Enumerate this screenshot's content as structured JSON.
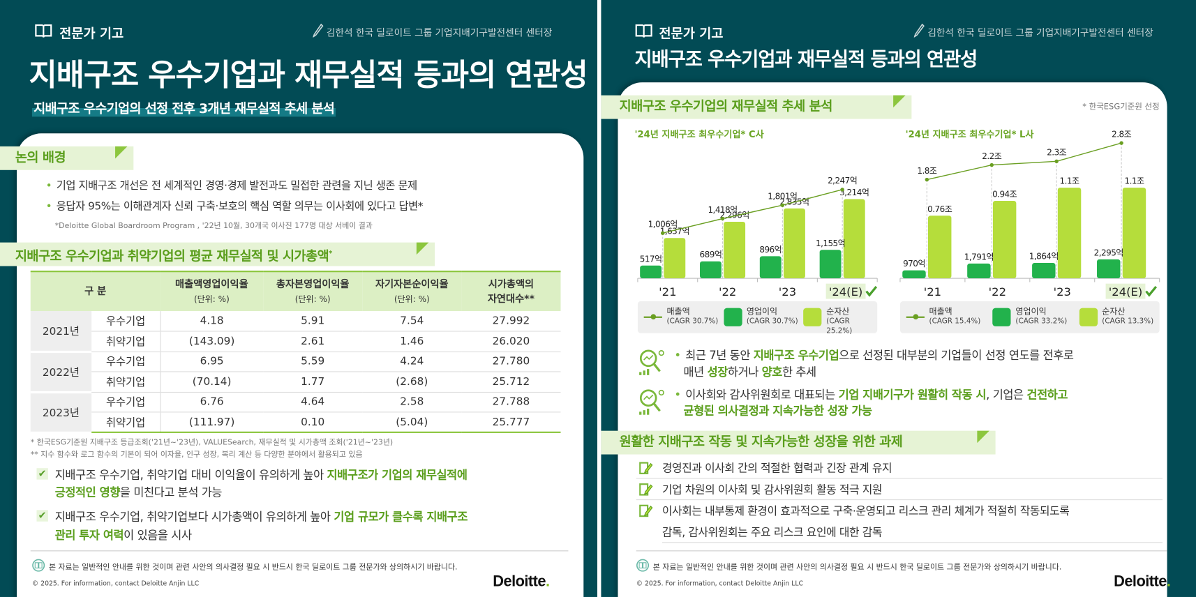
{
  "colors": {
    "bg": "#024b55",
    "accent": "#5a9e1c",
    "bar_operating": "#22b24c",
    "bar_net_assets": "#b5dd3b",
    "line_revenue": "#6a9f22"
  },
  "left": {
    "header_label": "전문가 기고",
    "author": "김한석 한국 딜로이트 그룹 기업지배기구발전센터 센터장",
    "title": "지배구조 우수기업과 재무실적 등과의 연관성",
    "subtitle": "지배구조 우수기업의 선정 전후 3개년 재무실적 추세 분석",
    "section1": {
      "title": "논의 배경",
      "bullets": [
        "기업 지배구조 개선은 전 세계적인 경영·경제 발전과도 밀접한 관련을 지닌 생존 문제",
        "응답자 95%는 이해관계자 신뢰 구축·보호의 핵심 역할 의무는 이사회에 있다고 답변*"
      ],
      "footnote": "*Deloitte Global Boardroom Program , '22년 10월, 30개국 이사진 177명 대상 서베이 결과"
    },
    "section2": {
      "title": "지배구조 우수기업과 취약기업의 평균 재무실적 및 시가총액",
      "title_mark": "*",
      "table": {
        "headers": [
          {
            "l1": "구 분",
            "l2": ""
          },
          {
            "l1": "매출액영업이익율",
            "l2": "(단위: %)"
          },
          {
            "l1": "총자본영업이익율",
            "l2": "(단위: %)"
          },
          {
            "l1": "자기자본순이익율",
            "l2": "(단위: %)"
          },
          {
            "l1": "시가총액의",
            "l2": "자연대수**"
          }
        ],
        "rows": [
          {
            "year": "2021년",
            "type": "우수기업",
            "v": [
              "4.18",
              "5.91",
              "7.54",
              "27.992"
            ]
          },
          {
            "year": "2021년",
            "type": "취약기업",
            "v": [
              "(143.09)",
              "2.61",
              "1.46",
              "26.020"
            ]
          },
          {
            "year": "2022년",
            "type": "우수기업",
            "v": [
              "6.95",
              "5.59",
              "4.24",
              "27.780"
            ]
          },
          {
            "year": "2022년",
            "type": "취약기업",
            "v": [
              "(70.14)",
              "1.77",
              "(2.68)",
              "25.712"
            ]
          },
          {
            "year": "2023년",
            "type": "우수기업",
            "v": [
              "6.76",
              "4.64",
              "2.58",
              "27.788"
            ]
          },
          {
            "year": "2023년",
            "type": "취약기업",
            "v": [
              "(111.97)",
              "0.10",
              "(5.04)",
              "25.777"
            ]
          }
        ]
      },
      "footnotes": [
        "* 한국ESG기준원 지배구조 등급조회('21년~'23년), VALUESearch, 재무실적 및 시가총액 조회('21년~'23년)",
        "** 지수 함수와 로그 함수의 기본이 되어 이자율, 인구 성장, 복리 계산 등 다양한 분야에서 활용되고 있음"
      ],
      "conclusions": [
        [
          [
            {
              "t": "지배구조 우수기업, 취약기업 대비 이익율이 유의하게 높아 ",
              "hl": false
            },
            {
              "t": "지배구조가 기업의 재무실적에",
              "hl": true
            }
          ],
          [
            {
              "t": "긍정적인 영향",
              "hl": true
            },
            {
              "t": "을 미친다고 분석 가능",
              "hl": false
            }
          ]
        ],
        [
          [
            {
              "t": "지배구조 우수기업, 취약기업보다 시가총액이 유의하게 높아 ",
              "hl": false
            },
            {
              "t": "기업 규모가 클수록 지배구조",
              "hl": true
            }
          ],
          [
            {
              "t": "관리 투자 여력",
              "hl": true
            },
            {
              "t": "이 있음을 시사",
              "hl": false
            }
          ]
        ]
      ]
    },
    "disclaimer": "본 자료는 일반적인 안내를 위한 것이며 관련 사안의 의사결정 필요 시 반드시 한국 딜로이트 그룹 전문가와 상의하시기 바랍니다.",
    "copyright": "© 2025. For information, contact Deloitte Anjin LLC",
    "logo": "Deloitte."
  },
  "right": {
    "header_label": "전문가 기고",
    "author": "김한석 한국 딜로이트 그룹 기업지배기구발전센터 센터장",
    "title": "지배구조 우수기업과 재무실적 등과의 연관성",
    "section1": {
      "title": "지배구조 우수기업의 재무실적 추세 분석",
      "note": "* 한국ESG기준원 선정"
    },
    "insights": [
      [
        [
          {
            "t": "최근 7년 동안 ",
            "hl": false
          },
          {
            "t": "지배구조 우수기업",
            "hl": true
          },
          {
            "t": "으로 선정된 대부분의 기업들이 선정 연도를 전후로",
            "hl": false
          }
        ],
        [
          {
            "t": "매년 ",
            "hl": false
          },
          {
            "t": "성장",
            "hl": true
          },
          {
            "t": "하거나 ",
            "hl": false
          },
          {
            "t": "양호",
            "hl": true
          },
          {
            "t": "한 추세",
            "hl": false
          }
        ]
      ],
      [
        [
          {
            "t": "이사회와 감사위원회로 대표되는 ",
            "hl": false
          },
          {
            "t": "기업 지배기구가 원활히 작동 시",
            "hl": true
          },
          {
            "t": ", 기업은 ",
            "hl": false
          },
          {
            "t": "건전하고",
            "hl": true
          }
        ],
        [
          {
            "t": "균형된 의사결정과 지속가능한 성장 가능",
            "hl": true
          }
        ]
      ]
    ],
    "section2": {
      "title": "원활한 지배구조 작동 및 지속가능한 성장을 위한 과제",
      "items": [
        "경영진과 이사회 간의 적절한 협력과 긴장 관계 유지",
        "기업 차원의 이사회 및 감사위원회 활동 적극 지원",
        "이사회는 내부통제 환경이 효과적으로 구축·운영되고 리스크 관리 체계가 적절히 작동되도록",
        "감독, 감사위원회는 주요 리스크 요인에 대한 감독"
      ]
    },
    "disclaimer": "본 자료는 일반적인 안내를 위한 것이며 관련 사안의 의사결정 필요 시 반드시 한국 딜로이트 그룹 전문가와 상의하시기 바랍니다.",
    "copyright": "© 2025. For information, contact Deloitte Anjin LLC",
    "logo": "Deloitte."
  },
  "chart_data": [
    {
      "type": "bar",
      "title": "'24년 지배구조 최우수기업* C사",
      "categories": [
        "'21",
        "'22",
        "'23",
        "'24(E)"
      ],
      "highlight_category": "'24(E)",
      "unit": "억",
      "series": [
        {
          "name": "매출액",
          "cagr": "(CAGR 30.7%)",
          "kind": "line",
          "values": [
            1006,
            1418,
            1801,
            2247
          ],
          "labels": [
            "1,006억",
            "1,418억",
            "1,801억",
            "2,247억"
          ]
        },
        {
          "name": "영업이익",
          "cagr": "(CAGR 30.7%)",
          "kind": "bar",
          "values": [
            517,
            689,
            896,
            1155
          ],
          "labels": [
            "517억",
            "689억",
            "896억",
            "1,155억"
          ]
        },
        {
          "name": "순자산",
          "cagr": "(CAGR 25.2%)",
          "kind": "bar",
          "values": [
            1637,
            2296,
            2835,
            3214
          ],
          "labels": [
            "1,637억",
            "2,296억",
            "2,835억",
            "3,214억"
          ]
        }
      ]
    },
    {
      "type": "bar",
      "title": "'24년 지배구조 최우수기업* L사",
      "categories": [
        "'21",
        "'22",
        "'23",
        "'24(E)"
      ],
      "highlight_category": "'24(E)",
      "unit": "억",
      "series": [
        {
          "name": "매출액",
          "cagr": "(CAGR 15.4%)",
          "kind": "line",
          "values": [
            18000,
            22000,
            23000,
            28000
          ],
          "labels": [
            "1.8조",
            "2.2조",
            "2.3조",
            "2.8조"
          ]
        },
        {
          "name": "영업이익",
          "cagr": "(CAGR 33.2%)",
          "kind": "bar",
          "values": [
            970,
            1791,
            1864,
            2295
          ],
          "labels": [
            "970억",
            "1,791억",
            "1,864억",
            "2,295억"
          ]
        },
        {
          "name": "순자산",
          "cagr": "(CAGR 13.3%)",
          "kind": "bar",
          "values": [
            7600,
            9400,
            11000,
            11000
          ],
          "labels": [
            "0.76조",
            "0.94조",
            "1.1조",
            "1.1조"
          ]
        }
      ]
    }
  ]
}
